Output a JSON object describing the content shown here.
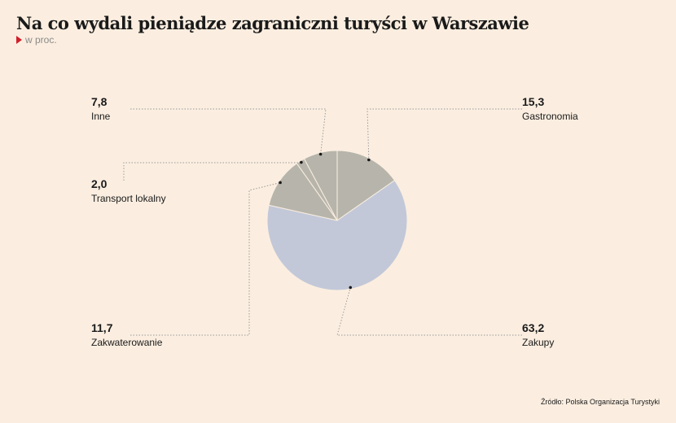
{
  "title": "Na co wydali pieniądze zagraniczni turyści w Warszawie",
  "subtitle": "w proc.",
  "source": "Źródło: Polska Organizacja Turystyki",
  "chart_data": {
    "type": "pie",
    "slices": [
      {
        "label": "Gastronomia",
        "value": 15.3,
        "value_text": "15,3",
        "color": "#b7b5ab"
      },
      {
        "label": "Zakupy",
        "value": 63.2,
        "value_text": "63,2",
        "color": "#c2c8d8"
      },
      {
        "label": "Zakwaterowanie",
        "value": 11.7,
        "value_text": "11,7",
        "color": "#b7b5ab"
      },
      {
        "label": "Transport lokalny",
        "value": 2.0,
        "value_text": "2,0",
        "color": "#b7b5ab"
      },
      {
        "label": "Inne",
        "value": 7.8,
        "value_text": "7,8",
        "color": "#b7b5ab"
      }
    ],
    "colors": {
      "leader": "#9a9a9a",
      "separator": "#fbeee0",
      "dot": "#1a1a1a"
    }
  }
}
